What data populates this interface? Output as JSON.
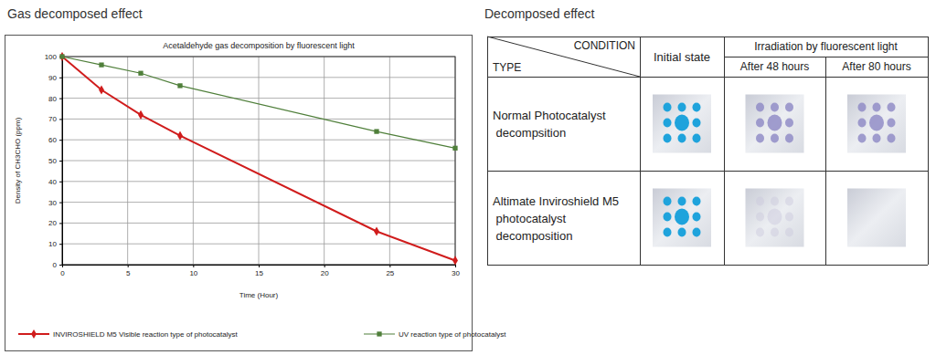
{
  "headings": {
    "chart": "Gas decomposed effect",
    "table": "Decomposed effect"
  },
  "chart_data": {
    "type": "line",
    "title": "Acetaldehyde gas decomposition by fluorescent light",
    "x_label": "Time (Hour)",
    "y_label": "Density of CH3CHO (ppm)",
    "x": [
      0,
      3,
      6,
      9,
      24,
      30
    ],
    "xlim": [
      0,
      30
    ],
    "xticks": [
      0,
      5,
      10,
      15,
      20,
      25,
      30
    ],
    "ylim": [
      0,
      100
    ],
    "yticks": [
      0,
      10,
      20,
      30,
      40,
      50,
      60,
      70,
      80,
      90,
      100
    ],
    "grid": true,
    "legend": "bottom",
    "series": [
      {
        "name": "INVIROSHIELD M5 Visible reaction type of photocatalyst",
        "color": "#d01c1c",
        "marker": "diamond",
        "values": [
          100,
          84,
          72,
          62,
          16,
          2
        ]
      },
      {
        "name": "UV reaction type of photocatalyst",
        "color": "#4f7f3a",
        "marker": "square",
        "values": [
          100,
          96,
          92,
          86,
          64,
          56
        ]
      }
    ]
  },
  "table": {
    "corner_top": "CONDITION",
    "corner_bottom": "TYPE",
    "header_top": [
      "Initial state",
      "Irradiation by fluorescent light"
    ],
    "header_sub": [
      "After 48 hours",
      "After 80 hours"
    ],
    "rows": [
      "Normal Photocatalyst decompsition",
      "Altimate Inviroshield M5 photocatalyst decomposition"
    ]
  }
}
